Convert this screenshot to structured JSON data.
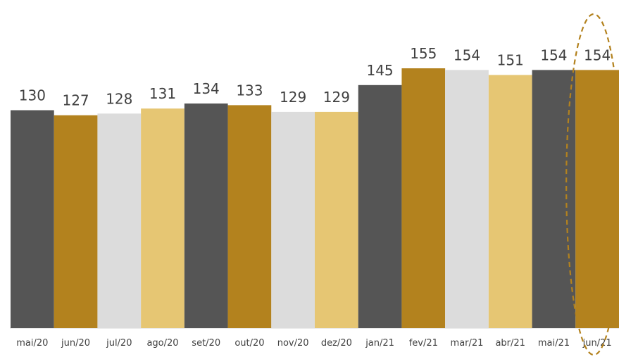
{
  "chart_data": {
    "type": "bar",
    "categories": [
      "mai/20",
      "jun/20",
      "jul/20",
      "ago/20",
      "set/20",
      "out/20",
      "nov/20",
      "dez/20",
      "jan/21",
      "fev/21",
      "mar/21",
      "abr/21",
      "mai/21",
      "jun/21"
    ],
    "values": [
      130,
      127,
      128,
      131,
      134,
      133,
      129,
      129,
      145,
      155,
      154,
      151,
      154,
      154
    ],
    "bar_colors": [
      "#555555",
      "#b3821e",
      "#dcdcdc",
      "#e6c673",
      "#555555",
      "#b3821e",
      "#dcdcdc",
      "#e6c673",
      "#555555",
      "#b3821e",
      "#dcdcdc",
      "#e6c673",
      "#555555",
      "#b3821e"
    ],
    "highlight_color": "#b3821e",
    "highlighted_category": "jun/21",
    "ylim": [
      0,
      155
    ],
    "grid": false,
    "data_labels": true
  }
}
